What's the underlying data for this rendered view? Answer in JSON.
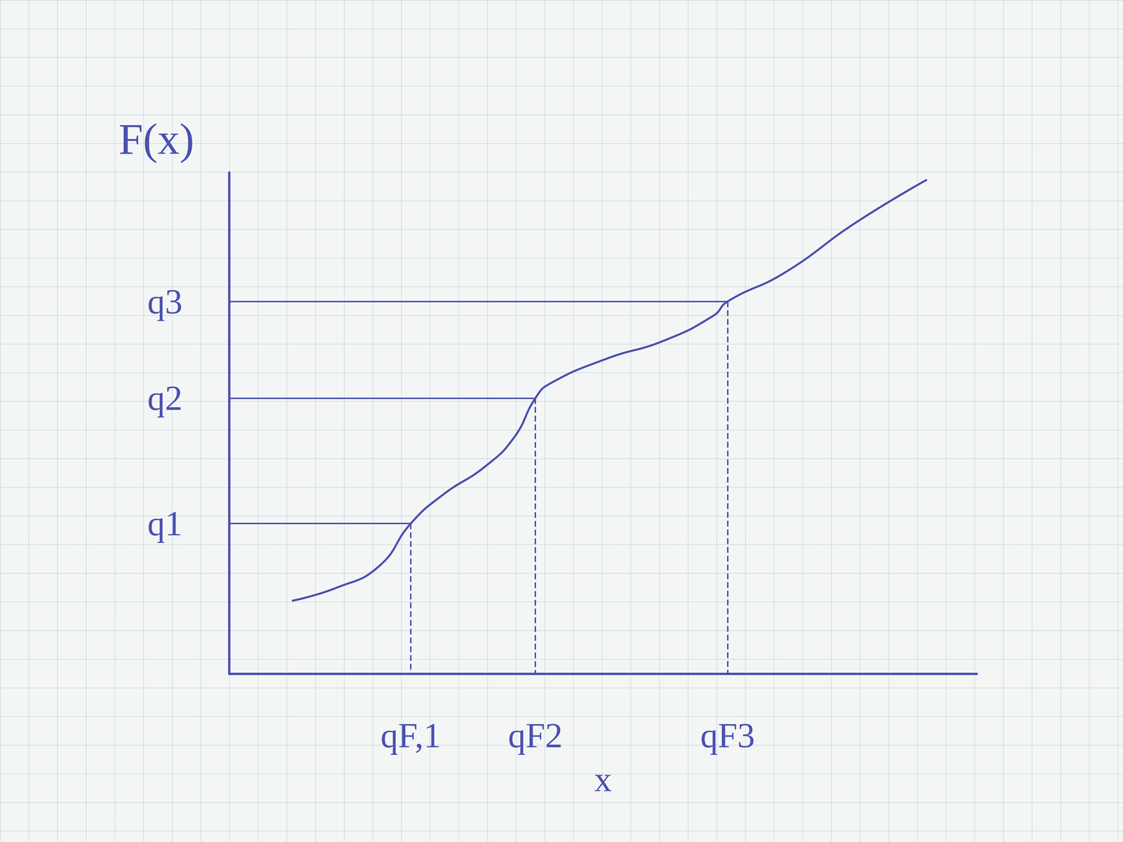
{
  "chart_data": {
    "type": "line",
    "y_label": "F(x)",
    "x_label": "x",
    "color": "#4a50b0",
    "x": [
      88,
      150,
      210,
      255,
      300,
      360,
      400,
      430,
      450,
      530,
      610,
      680,
      700,
      780,
      880,
      980
    ],
    "values": [
      102,
      120,
      150,
      210,
      250,
      290,
      330,
      385,
      405,
      440,
      465,
      500,
      520,
      560,
      630,
      690
    ],
    "xlim": [
      0,
      1050
    ],
    "ylim": [
      0,
      700
    ],
    "xticks": [
      {
        "value": 255,
        "label": "qF,1"
      },
      {
        "value": 430,
        "label": "qF2"
      },
      {
        "value": 700,
        "label": "qF3"
      }
    ],
    "yticks": [
      {
        "value": 210,
        "label": "q1"
      },
      {
        "value": 385,
        "label": "q2"
      },
      {
        "value": 520,
        "label": "q3"
      }
    ],
    "grid": false
  }
}
